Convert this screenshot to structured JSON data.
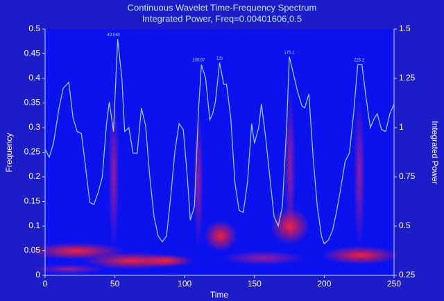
{
  "chart_data": {
    "type": "line",
    "title": "Continuous Wavelet Time-Frequency Spectrum",
    "subtitle": "Integrated Power, Freq=0.00401606,0.5",
    "x_label": "Time",
    "y_label": "Frequency",
    "y2_label": "Integrated Power",
    "xlim": [
      0,
      250
    ],
    "xticks": [
      0,
      50,
      100,
      150,
      200,
      250
    ],
    "ylim": [
      0,
      0.5
    ],
    "yticks": [
      0,
      0.05,
      0.1,
      0.15,
      0.2,
      0.25,
      0.3,
      0.35,
      0.4,
      0.45,
      0.5
    ],
    "y2lim": [
      0.25,
      1.5
    ],
    "y2ticks": [
      0.25,
      0.5,
      0.75,
      1,
      1.25,
      1.5
    ],
    "x": [
      0,
      3,
      6,
      10,
      13,
      17,
      20,
      23,
      26,
      29,
      32,
      35,
      38,
      41,
      44,
      46,
      49,
      52,
      55,
      57,
      60,
      63,
      66,
      69,
      72,
      75,
      78,
      81,
      84,
      87,
      90,
      93,
      96,
      99,
      102,
      104,
      107,
      110,
      112,
      115,
      118,
      120,
      122,
      125,
      128,
      130,
      133,
      136,
      139,
      142,
      145,
      148,
      150,
      153,
      155,
      158,
      161,
      164,
      167,
      170,
      173,
      175,
      178,
      181,
      184,
      186,
      189,
      192,
      195,
      198,
      200,
      203,
      206,
      209,
      212,
      215,
      218,
      221,
      224,
      227,
      230,
      233,
      236,
      238,
      241,
      244,
      247,
      250
    ],
    "series": [
      {
        "name": "Integrated Power",
        "color": "#9ad8ff",
        "axis": "y2",
        "values": [
          0.89,
          0.85,
          0.92,
          1.1,
          1.2,
          1.23,
          1.05,
          0.98,
          0.97,
          0.8,
          0.62,
          0.61,
          0.67,
          0.75,
          1.02,
          1.13,
          0.98,
          1.45,
          1.25,
          0.98,
          1.0,
          0.87,
          0.87,
          1.1,
          1.01,
          0.75,
          0.55,
          0.45,
          0.42,
          0.45,
          0.65,
          0.88,
          1.02,
          0.99,
          0.74,
          0.53,
          0.6,
          1.1,
          1.32,
          1.25,
          1.04,
          1.07,
          1.13,
          1.33,
          1.22,
          1.22,
          1.05,
          0.72,
          0.58,
          0.57,
          0.72,
          1.02,
          0.92,
          1.0,
          1.12,
          0.95,
          0.75,
          0.55,
          0.5,
          0.6,
          1.0,
          1.36,
          1.27,
          1.18,
          1.11,
          1.1,
          1.17,
          0.85,
          0.6,
          0.45,
          0.41,
          0.43,
          0.48,
          0.58,
          0.7,
          0.83,
          0.87,
          1.07,
          1.32,
          1.32,
          1.15,
          1.0,
          1.05,
          1.07,
          0.99,
          0.98,
          1.07,
          1.12
        ]
      }
    ],
    "annotations": [
      {
        "text": "49.048",
        "x": 49,
        "y": 1.45
      },
      {
        "text": "109.97",
        "x": 110,
        "y": 1.32
      },
      {
        "text": "125",
        "x": 125,
        "y": 1.33
      },
      {
        "text": "175.1",
        "x": 175,
        "y": 1.36
      },
      {
        "text": "226.2",
        "x": 225,
        "y": 1.32
      }
    ]
  }
}
